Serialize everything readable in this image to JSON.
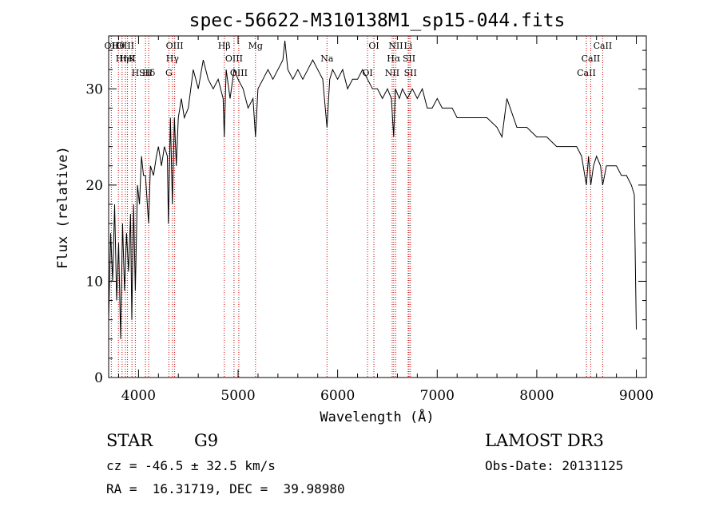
{
  "chart_data": {
    "type": "line",
    "title": "spec-56622-M310138M1_sp15-044.fits",
    "xlabel": "Wavelength (Å)",
    "ylabel": "Flux (relative)",
    "xlim": [
      3700,
      9100
    ],
    "ylim": [
      0,
      35.5
    ],
    "xticks": [
      4000,
      5000,
      6000,
      7000,
      8000,
      9000
    ],
    "yticks": [
      0,
      10,
      20,
      30
    ],
    "series": [
      {
        "name": "spectrum",
        "x": [
          3700,
          3720,
          3740,
          3760,
          3780,
          3800,
          3820,
          3840,
          3860,
          3880,
          3900,
          3920,
          3933,
          3950,
          3968,
          3990,
          4010,
          4030,
          4050,
          4070,
          4101,
          4120,
          4150,
          4180,
          4200,
          4230,
          4260,
          4290,
          4300,
          4320,
          4340,
          4360,
          4380,
          4400,
          4430,
          4460,
          4500,
          4550,
          4600,
          4650,
          4700,
          4750,
          4800,
          4850,
          4861,
          4880,
          4920,
          4960,
          5000,
          5050,
          5100,
          5150,
          5175,
          5200,
          5250,
          5300,
          5350,
          5400,
          5450,
          5470,
          5500,
          5550,
          5600,
          5650,
          5700,
          5750,
          5800,
          5850,
          5893,
          5920,
          5950,
          6000,
          6050,
          6100,
          6150,
          6200,
          6250,
          6300,
          6350,
          6400,
          6450,
          6500,
          6540,
          6563,
          6580,
          6620,
          6650,
          6700,
          6750,
          6800,
          6850,
          6900,
          6950,
          7000,
          7050,
          7100,
          7150,
          7200,
          7300,
          7400,
          7500,
          7600,
          7650,
          7700,
          7800,
          7900,
          8000,
          8100,
          8200,
          8300,
          8400,
          8450,
          8498,
          8520,
          8542,
          8570,
          8600,
          8640,
          8662,
          8700,
          8750,
          8800,
          8850,
          8900,
          8950,
          8980,
          9000
        ],
        "values": [
          6,
          15,
          10,
          18,
          8,
          14,
          4,
          16,
          9,
          15,
          11,
          17,
          6,
          18,
          9,
          20,
          18,
          23,
          21,
          21,
          16,
          22,
          21,
          23,
          24,
          22,
          24,
          23,
          16,
          27,
          18,
          27,
          22,
          27,
          29,
          27,
          28,
          32,
          30,
          33,
          31,
          30,
          31,
          29,
          25,
          32,
          29,
          32,
          31,
          30,
          28,
          29,
          25,
          30,
          31,
          32,
          31,
          32,
          33,
          35,
          32,
          31,
          32,
          31,
          32,
          33,
          32,
          31,
          26,
          31,
          32,
          31,
          32,
          30,
          31,
          31,
          32,
          31,
          30,
          30,
          29,
          30,
          29,
          25,
          30,
          29,
          30,
          29,
          30,
          29,
          30,
          28,
          28,
          29,
          28,
          28,
          28,
          27,
          27,
          27,
          27,
          26,
          25,
          29,
          26,
          26,
          25,
          25,
          24,
          24,
          24,
          23,
          20,
          23,
          20,
          22,
          23,
          22,
          20,
          22,
          22,
          22,
          21,
          21,
          20,
          19,
          5
        ]
      }
    ],
    "spectral_lines": [
      {
        "label": "Hθ",
        "wavelength": 3798
      },
      {
        "label": "K",
        "wavelength": 3934
      },
      {
        "label": "Hδ",
        "wavelength": 4102
      },
      {
        "label": "OII",
        "wavelength": 3727
      },
      {
        "label": "HeI",
        "wavelength": 3889
      },
      {
        "label": "SII",
        "wavelength": 4070
      },
      {
        "label": "OIII",
        "wavelength": 3869
      },
      {
        "label": "Hη",
        "wavelength": 3835
      },
      {
        "label": "H",
        "wavelength": 3968
      },
      {
        "label": "OIII",
        "wavelength": 4363
      },
      {
        "label": "Hγ",
        "wavelength": 4341
      },
      {
        "label": "G",
        "wavelength": 4305
      },
      {
        "label": "Hβ",
        "wavelength": 4861
      },
      {
        "label": "OIII",
        "wavelength": 4959
      },
      {
        "label": "OIII",
        "wavelength": 5007
      },
      {
        "label": "Mg",
        "wavelength": 5175
      },
      {
        "label": "Na",
        "wavelength": 5893
      },
      {
        "label": "OI",
        "wavelength": 6300
      },
      {
        "label": "OI",
        "wavelength": 6364
      },
      {
        "label": "Hα",
        "wavelength": 6563
      },
      {
        "label": "NII",
        "wavelength": 6548
      },
      {
        "label": "NII",
        "wavelength": 6584
      },
      {
        "label": "SII",
        "wavelength": 6717
      },
      {
        "label": "SII",
        "wavelength": 6731
      },
      {
        "label": "Li",
        "wavelength": 6708
      },
      {
        "label": "CaII",
        "wavelength": 8542
      },
      {
        "label": "CaII",
        "wavelength": 8498
      },
      {
        "label": "CaII",
        "wavelength": 8662
      }
    ],
    "line_color": "#000000",
    "marker_color": "#cc0000"
  },
  "info": {
    "class": "STAR",
    "subclass": "G9",
    "survey": "LAMOST DR3",
    "cz": "cz = -46.5 ± 32.5 km/s",
    "obs_date": "Obs-Date: 20131125",
    "coords": "RA =  16.31719, DEC =  39.98980"
  }
}
